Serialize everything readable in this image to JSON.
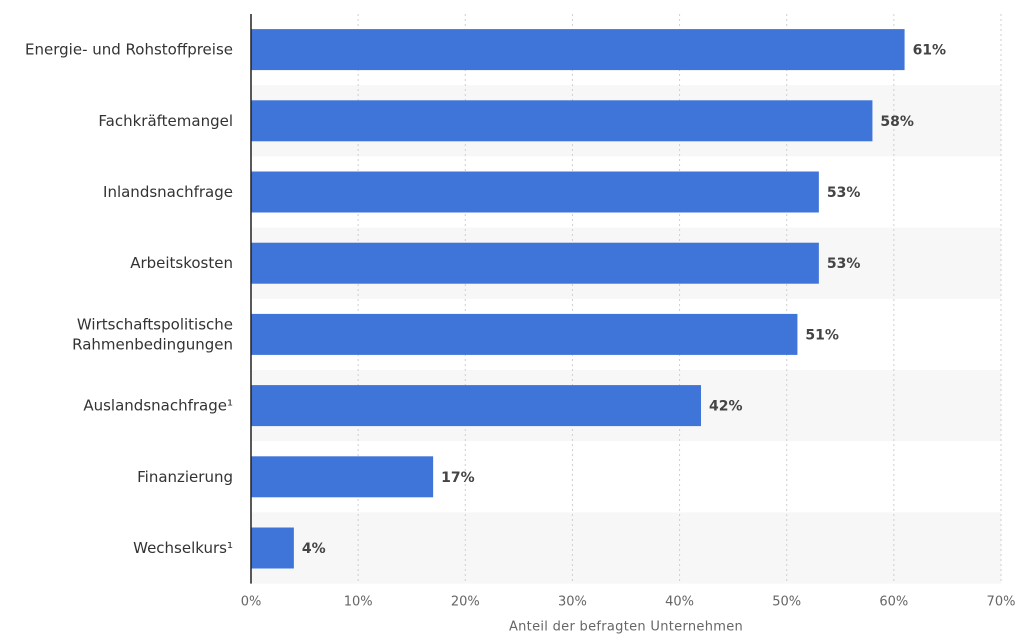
{
  "chart_data": {
    "type": "bar",
    "orientation": "horizontal",
    "categories": [
      "Energie- und Rohstoffpreise",
      "Fachkräftemangel",
      "Inlandsnachfrage",
      "Arbeitskosten",
      "Wirtschaftspolitische Rahmenbedingungen",
      "Auslandsnachfrage¹",
      "Finanzierung",
      "Wechselkurs¹"
    ],
    "values": [
      61,
      58,
      53,
      53,
      51,
      42,
      17,
      4
    ],
    "value_labels": [
      "61%",
      "58%",
      "53%",
      "53%",
      "51%",
      "42%",
      "17%",
      "4%"
    ],
    "xlim": [
      0,
      70
    ],
    "x_ticks": [
      0,
      10,
      20,
      30,
      40,
      50,
      60,
      70
    ],
    "x_tick_labels": [
      "0%",
      "10%",
      "20%",
      "30%",
      "40%",
      "50%",
      "60%",
      "70%"
    ],
    "xlabel": "Anteil der befragten Unternehmen",
    "grid": true,
    "colors": {
      "bar": "#3f74d8",
      "grid": "#cfcfcf",
      "axis": "#222222",
      "band": "#f7f7f7"
    }
  }
}
